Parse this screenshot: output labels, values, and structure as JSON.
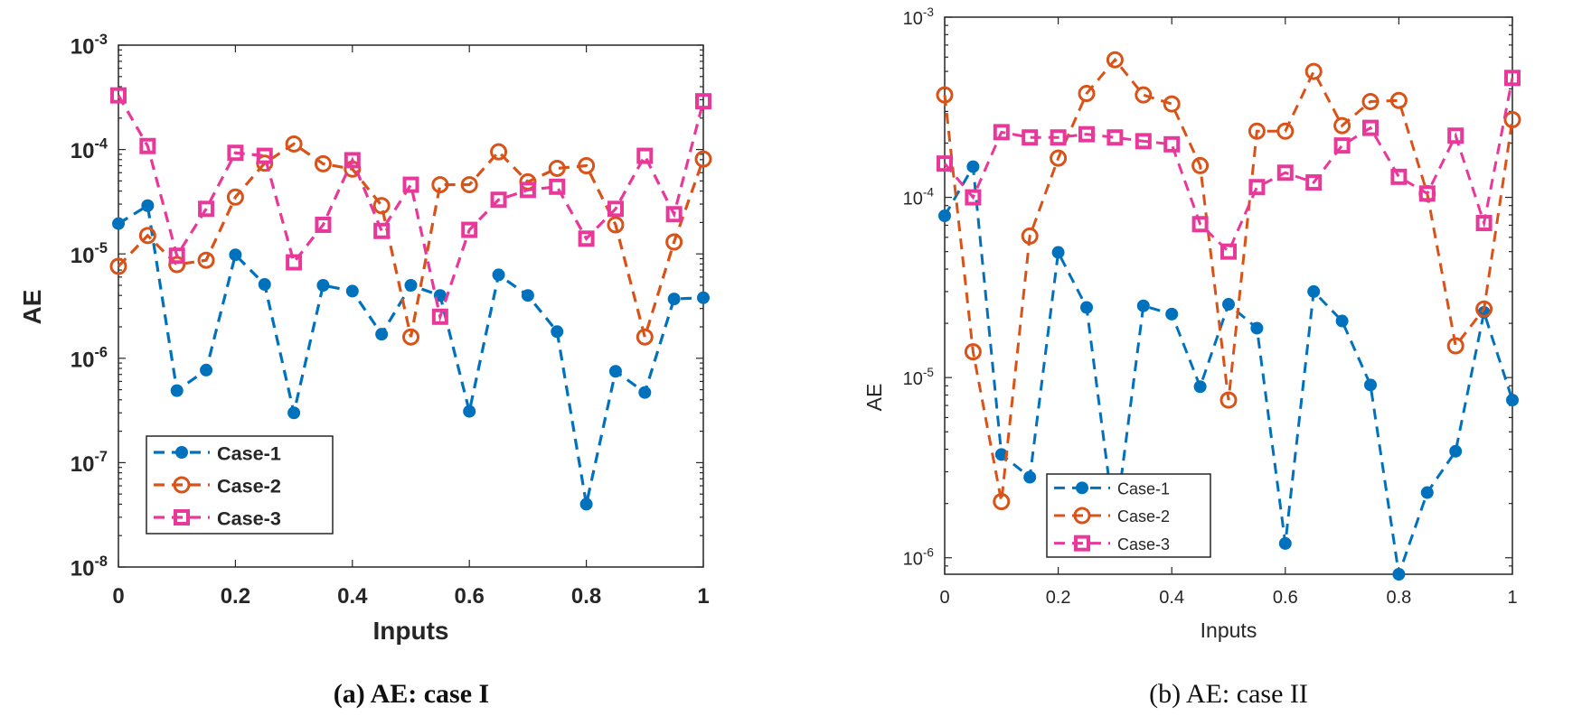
{
  "chart_data": [
    {
      "type": "line",
      "caption": "(a) AE: case I",
      "xlabel": "Inputs",
      "ylabel": "AE",
      "yscale": "log",
      "xlim": [
        0,
        1
      ],
      "ylim": [
        1e-08,
        0.001
      ],
      "xticks": [
        0,
        0.2,
        0.4,
        0.6,
        0.8,
        1
      ],
      "xtick_labels": [
        "0",
        "0.2",
        "0.4",
        "0.6",
        "0.8",
        "1"
      ],
      "ytick_exponents": [
        -8,
        -7,
        -6,
        -5,
        -4,
        -3
      ],
      "ytick_base": "10",
      "legend_position": "lower-left",
      "x": [
        0,
        0.05,
        0.1,
        0.15,
        0.2,
        0.25,
        0.3,
        0.35,
        0.4,
        0.45,
        0.5,
        0.55,
        0.6,
        0.65,
        0.7,
        0.75,
        0.8,
        0.85,
        0.9,
        0.95,
        1
      ],
      "series": [
        {
          "name": "Case-1",
          "color": "#0072BD",
          "marker": "filled-circle",
          "values": [
            1.95e-05,
            2.9e-05,
            4.9e-07,
            7.7e-07,
            9.8e-06,
            5.1e-06,
            3e-07,
            5e-06,
            4.4e-06,
            1.7e-06,
            5e-06,
            4e-06,
            3.1e-07,
            6.3e-06,
            4e-06,
            1.8e-06,
            4e-08,
            7.5e-07,
            4.7e-07,
            3.7e-06,
            3.8e-06
          ]
        },
        {
          "name": "Case-2",
          "color": "#D95319",
          "marker": "open-circle",
          "values": [
            7.6e-06,
            1.5e-05,
            7.9e-06,
            8.7e-06,
            3.5e-05,
            7.4e-05,
            0.000113,
            7.3e-05,
            6.5e-05,
            2.9e-05,
            1.6e-06,
            4.6e-05,
            4.6e-05,
            9.5e-05,
            4.9e-05,
            6.6e-05,
            7e-05,
            1.9e-05,
            1.6e-06,
            1.3e-05,
            8.1e-05
          ]
        },
        {
          "name": "Case-3",
          "color": "#E8399A",
          "marker": "square",
          "values": [
            0.00033,
            0.000108,
            9.6e-06,
            2.7e-05,
            9.3e-05,
            8.7e-05,
            8.3e-06,
            1.9e-05,
            7.9e-05,
            1.66e-05,
            4.6e-05,
            2.5e-06,
            1.7e-05,
            3.3e-05,
            4.1e-05,
            4.4e-05,
            1.4e-05,
            2.7e-05,
            8.7e-05,
            2.4e-05,
            0.00029
          ]
        }
      ]
    },
    {
      "type": "line",
      "caption": "(b) AE: case II",
      "xlabel": "Inputs",
      "ylabel": "AE",
      "yscale": "log",
      "xlim": [
        0,
        1
      ],
      "ylim": [
        8.1e-07,
        0.001
      ],
      "xticks": [
        0,
        0.2,
        0.4,
        0.6,
        0.8,
        1
      ],
      "xtick_labels": [
        "0",
        "0.2",
        "0.4",
        "0.6",
        "0.8",
        "1"
      ],
      "ytick_exponents": [
        -6,
        -5,
        -4,
        -3
      ],
      "ytick_base": "10",
      "legend_position": "lower-left",
      "x": [
        0,
        0.05,
        0.1,
        0.15,
        0.2,
        0.25,
        0.3,
        0.35,
        0.4,
        0.45,
        0.5,
        0.55,
        0.6,
        0.65,
        0.7,
        0.75,
        0.8,
        0.85,
        0.9,
        0.95,
        1
      ],
      "series": [
        {
          "name": "Case-1",
          "color": "#0072BD",
          "marker": "filled-circle",
          "values": [
            7.9e-05,
            0.000148,
            3.74e-06,
            2.8e-06,
            4.95e-05,
            2.45e-05,
            1.5e-06,
            2.5e-05,
            2.25e-05,
            8.9e-06,
            2.55e-05,
            1.88e-05,
            1.2e-06,
            3e-05,
            2.06e-05,
            9.1e-06,
            8.1e-07,
            2.3e-06,
            3.9e-06,
            2.3e-05,
            7.5e-06
          ]
        },
        {
          "name": "Case-2",
          "color": "#D95319",
          "marker": "open-circle",
          "values": [
            0.00037,
            1.39e-05,
            2.05e-06,
            6.1e-05,
            0.000165,
            0.000377,
            0.00058,
            0.00037,
            0.00033,
            0.00015,
            7.5e-06,
            0.000233,
            0.000233,
            0.0005,
            0.00025,
            0.00034,
            0.000345,
            0.000105,
            1.5e-05,
            2.4e-05,
            0.00027
          ]
        },
        {
          "name": "Case-3",
          "color": "#E8399A",
          "marker": "square",
          "values": [
            0.000154,
            0.0001,
            0.00023,
            0.000215,
            0.000215,
            0.000224,
            0.000215,
            0.000205,
            0.000197,
            7.1e-05,
            5e-05,
            0.000114,
            0.000137,
            0.000121,
            0.000194,
            0.000243,
            0.00013,
            0.000105,
            0.00022,
            7.2e-05,
            0.00046
          ]
        }
      ]
    }
  ]
}
